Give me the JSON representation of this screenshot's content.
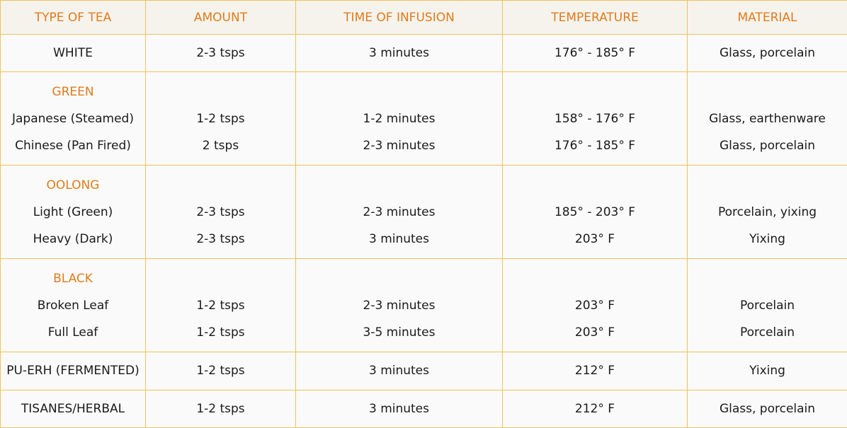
{
  "headers": [
    "TYPE OF TEA",
    "AMOUNT",
    "TIME OF INFUSION",
    "TEMPERATURE",
    "MATERIAL"
  ],
  "rows": [
    {
      "type": "WHITE",
      "amount": "2-3 tsps",
      "time": "3 minutes",
      "temp": "176° - 185° F",
      "material": "Glass, porcelain"
    },
    {
      "type": "GREEN",
      "subs": [
        {
          "type": "Japanese (Steamed)",
          "amount": "1-2 tsps",
          "time": "1-2 minutes",
          "temp": "158° - 176° F",
          "material": "Glass, earthenware"
        },
        {
          "type": "Chinese (Pan Fired)",
          "amount": "2 tsps",
          "time": "2-3 minutes",
          "temp": "176° - 185° F",
          "material": "Glass, porcelain"
        }
      ]
    },
    {
      "type": "OOLONG",
      "subs": [
        {
          "type": "Light (Green)",
          "amount": "2-3 tsps",
          "time": "2-3 minutes",
          "temp": "185° - 203° F",
          "material": "Porcelain, yixing"
        },
        {
          "type": "Heavy (Dark)",
          "amount": "2-3 tsps",
          "time": "3 minutes",
          "temp": "203° F",
          "material": "Yixing"
        }
      ]
    },
    {
      "type": "BLACK",
      "subs": [
        {
          "type": "Broken Leaf",
          "amount": "1-2 tsps",
          "time": "2-3 minutes",
          "temp": "203° F",
          "material": "Porcelain"
        },
        {
          "type": "Full Leaf",
          "amount": "1-2 tsps",
          "time": "3-5 minutes",
          "temp": "203° F",
          "material": "Porcelain"
        }
      ]
    },
    {
      "type": "PU-ERH (FERMENTED)",
      "amount": "1-2 tsps",
      "time": "3 minutes",
      "temp": "212° F",
      "material": "Yixing"
    },
    {
      "type": "TISANES/HERBAL",
      "amount": "1-2 tsps",
      "time": "3 minutes",
      "temp": "212° F",
      "material": "Glass, porcelain"
    }
  ],
  "colors": {
    "accent": "#e07b1c",
    "border": "#f0c15a",
    "header_bg": "#f6f3ec",
    "cell_bg": "#fafafa"
  }
}
